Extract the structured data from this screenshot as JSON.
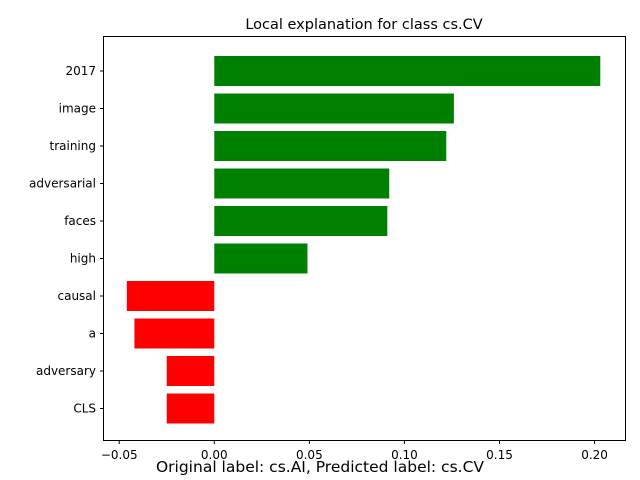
{
  "chart_data": {
    "type": "bar",
    "orientation": "horizontal",
    "title": "Local explanation for class cs.CV",
    "categories": [
      "2017",
      "image",
      "training",
      "adversarial",
      "faces",
      "high",
      "causal",
      "a",
      "adversary",
      "CLS"
    ],
    "values": [
      0.203,
      0.126,
      0.122,
      0.092,
      0.091,
      0.049,
      -0.046,
      -0.042,
      -0.025,
      -0.025
    ],
    "xlim": [
      -0.058,
      0.216
    ],
    "xticks": [
      -0.05,
      0.0,
      0.05,
      0.1,
      0.15,
      0.2
    ],
    "xtick_labels": [
      "−0.05",
      "0.00",
      "0.05",
      "0.10",
      "0.15",
      "0.20"
    ],
    "colors": {
      "positive": "#008000",
      "negative": "#ff0000"
    },
    "grid": false
  },
  "caption": "Original label: cs.AI, Predicted label: cs.CV"
}
